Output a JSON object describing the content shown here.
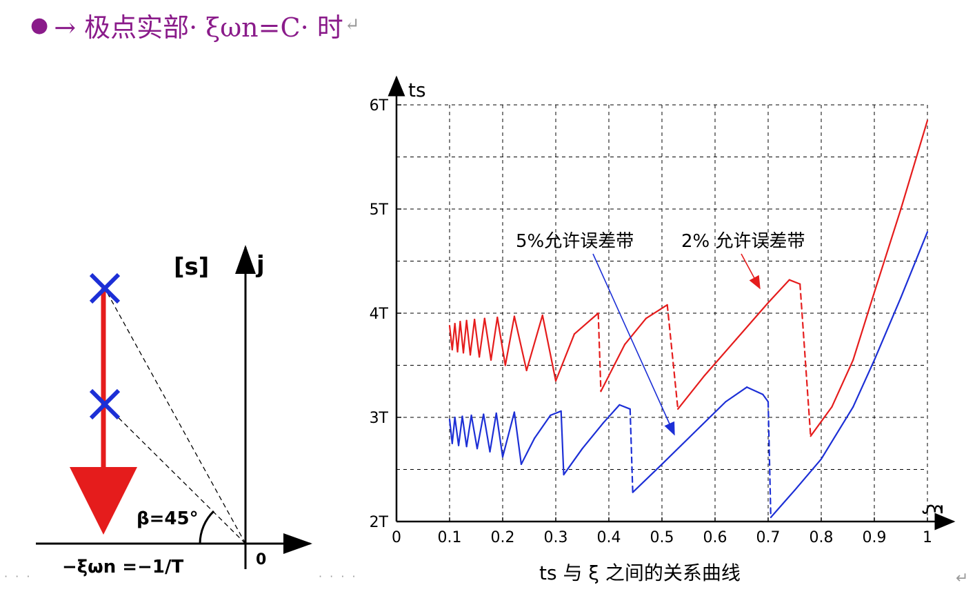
{
  "heading": {
    "bullet": "●",
    "text": "→ 极点实部· ξωn=C· 时",
    "return_mark": "↵",
    "color": "#8a1b8a"
  },
  "pole_diagram": {
    "plane_label": "[s]",
    "imag_axis_label": "j",
    "origin_label": "0",
    "angle_label": "β=45°",
    "real_part_label": "−ξωn =−1/T",
    "pole_color": "#1c2fd6",
    "arrow_color": "#e51c1c"
  },
  "footer": {
    "left_dots": "· · ·",
    "mid_dots": "· · · ·",
    "return_mark": "↵"
  },
  "chart_data": {
    "type": "line",
    "title": "ts 与 ξ 之间的关系曲线",
    "xlabel": "ξ",
    "ylabel": "ts",
    "xlim": [
      0,
      1
    ],
    "ylim": [
      2,
      6
    ],
    "xticks": [
      "0",
      "0.1",
      "0.2",
      "0.3",
      "0.4",
      "0.5",
      "0.6",
      "0.7",
      "0.8",
      "0.9",
      "1"
    ],
    "yticks": [
      "2T",
      "3T",
      "4T",
      "5T",
      "6T"
    ],
    "grid": true,
    "series": [
      {
        "name": "2% 允许误差带",
        "color": "#e51c1c",
        "points": [
          [
            0.1,
            3.88
          ],
          [
            0.105,
            3.65
          ],
          [
            0.11,
            3.9
          ],
          [
            0.115,
            3.63
          ],
          [
            0.12,
            3.92
          ],
          [
            0.126,
            3.62
          ],
          [
            0.132,
            3.93
          ],
          [
            0.139,
            3.6
          ],
          [
            0.147,
            3.94
          ],
          [
            0.156,
            3.58
          ],
          [
            0.166,
            3.95
          ],
          [
            0.178,
            3.55
          ],
          [
            0.19,
            3.96
          ],
          [
            0.205,
            3.5
          ],
          [
            0.222,
            3.97
          ],
          [
            0.245,
            3.45
          ],
          [
            0.275,
            3.98
          ],
          [
            0.3,
            3.35
          ],
          [
            0.335,
            3.8
          ],
          [
            0.38,
            4.0
          ],
          [
            0.385,
            3.25
          ],
          [
            0.43,
            3.7
          ],
          [
            0.47,
            3.95
          ],
          [
            0.51,
            4.08
          ],
          [
            0.53,
            3.08
          ],
          [
            0.58,
            3.4
          ],
          [
            0.64,
            3.75
          ],
          [
            0.7,
            4.1
          ],
          [
            0.74,
            4.32
          ],
          [
            0.76,
            4.28
          ],
          [
            0.78,
            2.82
          ],
          [
            0.82,
            3.1
          ],
          [
            0.86,
            3.55
          ],
          [
            0.9,
            4.2
          ],
          [
            0.95,
            5.0
          ],
          [
            1.0,
            5.85
          ]
        ]
      },
      {
        "name": "5%允许误差带",
        "color": "#1c2fd6",
        "points": [
          [
            0.1,
            2.98
          ],
          [
            0.105,
            2.75
          ],
          [
            0.11,
            3.0
          ],
          [
            0.117,
            2.73
          ],
          [
            0.124,
            3.01
          ],
          [
            0.132,
            2.72
          ],
          [
            0.141,
            3.02
          ],
          [
            0.152,
            2.7
          ],
          [
            0.164,
            3.03
          ],
          [
            0.176,
            2.67
          ],
          [
            0.188,
            3.04
          ],
          [
            0.2,
            2.62
          ],
          [
            0.222,
            3.05
          ],
          [
            0.235,
            2.55
          ],
          [
            0.26,
            2.8
          ],
          [
            0.29,
            3.02
          ],
          [
            0.31,
            3.06
          ],
          [
            0.315,
            2.45
          ],
          [
            0.35,
            2.7
          ],
          [
            0.39,
            2.95
          ],
          [
            0.42,
            3.12
          ],
          [
            0.44,
            3.08
          ],
          [
            0.445,
            2.28
          ],
          [
            0.5,
            2.55
          ],
          [
            0.56,
            2.85
          ],
          [
            0.62,
            3.15
          ],
          [
            0.66,
            3.29
          ],
          [
            0.69,
            3.22
          ],
          [
            0.7,
            3.15
          ],
          [
            0.705,
            2.04
          ],
          [
            0.75,
            2.3
          ],
          [
            0.8,
            2.6
          ],
          [
            0.86,
            3.1
          ],
          [
            0.9,
            3.55
          ],
          [
            0.95,
            4.15
          ],
          [
            1.0,
            4.78
          ]
        ]
      }
    ],
    "dashed_drops": {
      "red_x": [
        0.385,
        0.53,
        0.78
      ],
      "blue_x": [
        0.445,
        0.705
      ]
    },
    "annotations": [
      {
        "text": "5%允许误差带",
        "color": "#000000"
      },
      {
        "text": "2% 允许误差带",
        "color": "#000000"
      }
    ]
  }
}
